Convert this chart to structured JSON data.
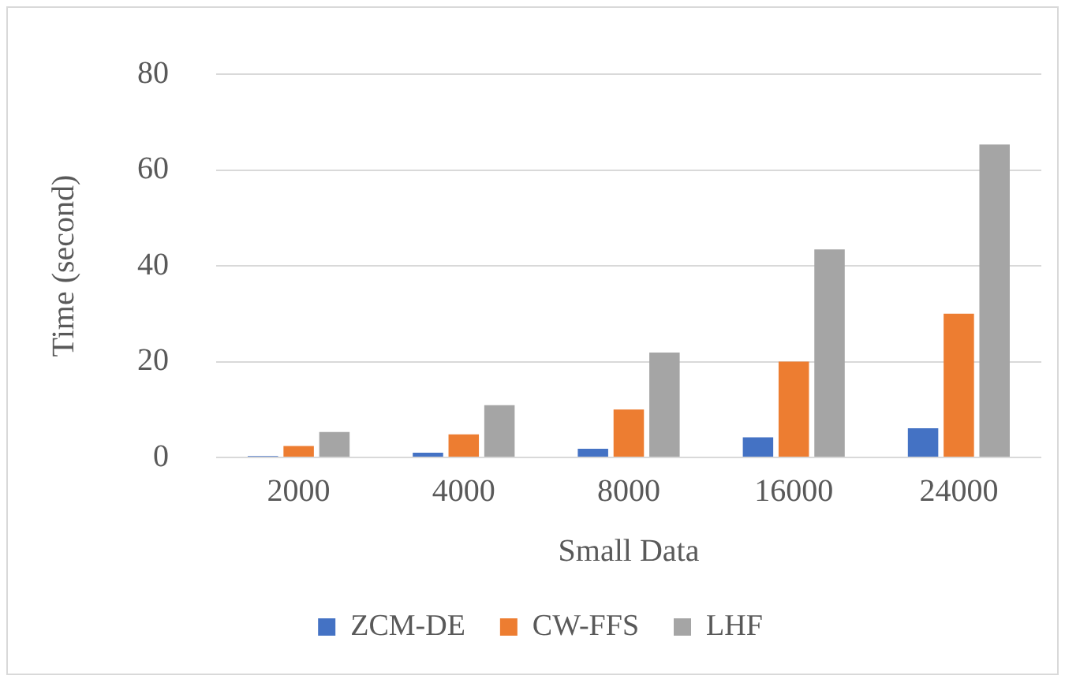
{
  "chart_data": {
    "type": "bar",
    "xlabel": "Small Data",
    "ylabel": "Time (second)",
    "categories": [
      "2000",
      "4000",
      "8000",
      "16000",
      "24000"
    ],
    "series": [
      {
        "name": "ZCM-DE",
        "color": "#4472c4",
        "values": [
          0.3,
          1,
          1.8,
          4.2,
          6.1
        ]
      },
      {
        "name": "CW-FFS",
        "color": "#ed7d31",
        "values": [
          2.4,
          4.8,
          10,
          20,
          30
        ]
      },
      {
        "name": "LHF",
        "color": "#a5a5a5",
        "values": [
          5.3,
          10.9,
          21.9,
          43.4,
          65.3
        ]
      }
    ],
    "ylim": [
      0,
      80
    ],
    "yticks": [
      0,
      20,
      40,
      60,
      80
    ],
    "grid": "y",
    "legend": "bottom"
  }
}
